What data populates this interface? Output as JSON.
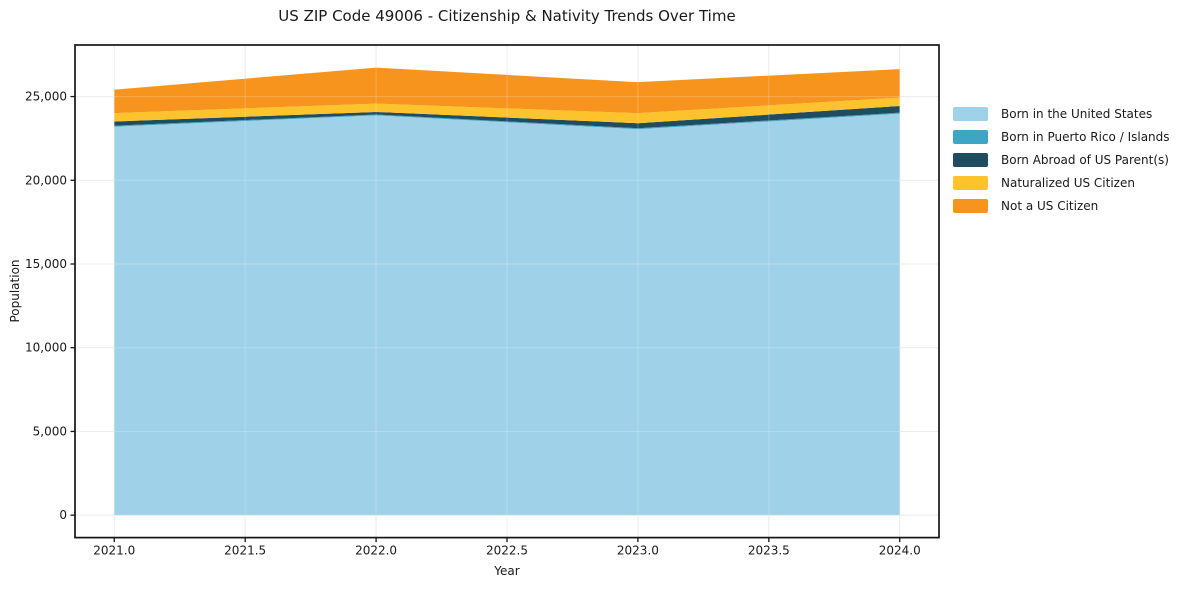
{
  "title": "US ZIP Code 49006 - Citizenship & Nativity Trends Over Time",
  "colors": {
    "background": "#ffffff",
    "grid": "#e7e7e7",
    "grid_overlay": "rgba(255,255,255,0.22)",
    "spine": "#151515",
    "text": "#1a1a1a"
  },
  "chart_data": {
    "type": "area",
    "stacked": true,
    "title": "US ZIP Code 49006 - Citizenship & Nativity Trends Over Time",
    "xlabel": "Year",
    "ylabel": "Population",
    "x": [
      2021,
      2022,
      2023,
      2024
    ],
    "series": [
      {
        "name": "Born in the United States",
        "color": "#9fd1e8",
        "values": [
          23200,
          23880,
          23050,
          23980
        ]
      },
      {
        "name": "Born in Puerto Rico / Islands",
        "color": "#3fa5c4",
        "values": [
          60,
          50,
          60,
          60
        ]
      },
      {
        "name": "Born Abroad of US Parent(s)",
        "color": "#1f4c5e",
        "values": [
          250,
          150,
          300,
          400
        ]
      },
      {
        "name": "Naturalized US Citizen",
        "color": "#fcc32d",
        "values": [
          500,
          500,
          600,
          500
        ]
      },
      {
        "name": "Not a US Citizen",
        "color": "#f7941e",
        "values": [
          1400,
          2150,
          1850,
          1700
        ]
      }
    ],
    "totals": [
      25410,
      26730,
      25860,
      26640
    ],
    "xlim": [
      2020.85,
      2024.15
    ],
    "ylim": [
      -1340,
      28080
    ],
    "xticks": {
      "values": [
        2021.0,
        2021.5,
        2022.0,
        2022.5,
        2023.0,
        2023.5,
        2024.0
      ],
      "labels": [
        "2021.0",
        "2021.5",
        "2022.0",
        "2022.5",
        "2023.0",
        "2023.5",
        "2024.0"
      ]
    },
    "yticks": {
      "values": [
        0,
        5000,
        10000,
        15000,
        20000,
        25000
      ],
      "labels": [
        "0",
        "5,000",
        "10,000",
        "15,000",
        "20,000",
        "25,000"
      ]
    },
    "grid": true,
    "legend_position": "right-outside"
  }
}
